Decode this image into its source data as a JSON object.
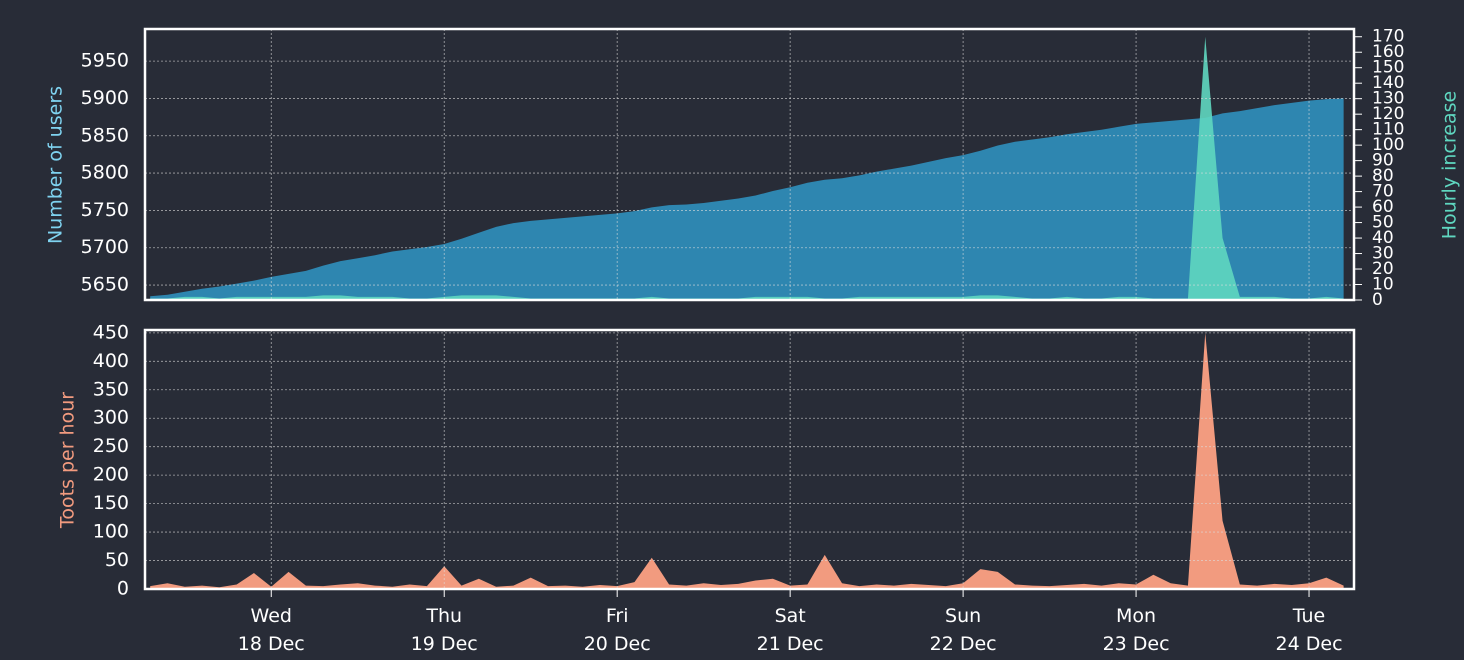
{
  "chart_data": [
    {
      "type": "area",
      "y_label": "Number of users",
      "y2_label": "Hourly increase",
      "x": [
        17.3,
        17.4,
        17.5,
        17.6,
        17.7,
        17.8,
        17.9,
        18.0,
        18.1,
        18.2,
        18.3,
        18.4,
        18.5,
        18.6,
        18.7,
        18.8,
        18.9,
        19.0,
        19.1,
        19.2,
        19.3,
        19.4,
        19.5,
        19.6,
        19.7,
        19.8,
        19.9,
        20.0,
        20.1,
        20.2,
        20.3,
        20.4,
        20.5,
        20.6,
        20.7,
        20.8,
        20.9,
        21.0,
        21.1,
        21.2,
        21.3,
        21.4,
        21.5,
        21.6,
        21.7,
        21.8,
        21.9,
        22.0,
        22.1,
        22.2,
        22.3,
        22.4,
        22.5,
        22.6,
        22.7,
        22.8,
        22.9,
        23.0,
        23.1,
        23.2,
        23.3,
        23.4,
        23.5,
        23.6,
        23.7,
        23.8,
        23.9,
        24.0,
        24.1,
        24.2
      ],
      "xlim": [
        17.27,
        24.26
      ],
      "ylim": [
        5630,
        5993
      ],
      "yticks": [
        5650,
        5700,
        5750,
        5800,
        5850,
        5900,
        5950
      ],
      "y2lim": [
        0,
        175
      ],
      "y2ticks": [
        0,
        10,
        20,
        30,
        40,
        50,
        60,
        70,
        80,
        90,
        100,
        110,
        120,
        130,
        140,
        150,
        160,
        170
      ],
      "grid": true,
      "series": [
        {
          "name": "Number of users",
          "color": "#2e86b0",
          "axis": "y",
          "values": [
            5635,
            5637,
            5641,
            5645,
            5648,
            5652,
            5656,
            5661,
            5665,
            5669,
            5676,
            5682,
            5686,
            5690,
            5695,
            5698,
            5701,
            5705,
            5712,
            5720,
            5728,
            5733,
            5736,
            5738,
            5740,
            5742,
            5744,
            5746,
            5749,
            5754,
            5757,
            5758,
            5760,
            5763,
            5766,
            5770,
            5776,
            5781,
            5787,
            5791,
            5793,
            5797,
            5802,
            5806,
            5810,
            5815,
            5820,
            5824,
            5830,
            5837,
            5842,
            5845,
            5848,
            5852,
            5855,
            5858,
            5862,
            5866,
            5868,
            5870,
            5872,
            5874,
            5880,
            5883,
            5887,
            5891,
            5894,
            5897,
            5899,
            5900
          ]
        },
        {
          "name": "Hourly increase",
          "color": "#5fd7c0",
          "axis": "y2",
          "values": [
            1,
            1,
            2,
            2,
            1,
            2,
            2,
            2,
            2,
            2,
            3,
            3,
            2,
            2,
            2,
            1,
            1,
            2,
            3,
            3,
            3,
            2,
            1,
            1,
            1,
            1,
            1,
            1,
            1,
            2,
            1,
            1,
            1,
            1,
            1,
            2,
            2,
            2,
            2,
            1,
            1,
            2,
            2,
            2,
            2,
            2,
            2,
            2,
            3,
            3,
            2,
            1,
            1,
            2,
            1,
            1,
            2,
            2,
            1,
            1,
            1,
            170,
            40,
            2,
            2,
            2,
            1,
            1,
            2,
            1
          ]
        }
      ]
    },
    {
      "type": "area",
      "y_label": "Toots per hour",
      "x": [
        17.3,
        17.4,
        17.5,
        17.6,
        17.7,
        17.8,
        17.9,
        18.0,
        18.1,
        18.2,
        18.3,
        18.4,
        18.5,
        18.6,
        18.7,
        18.8,
        18.9,
        19.0,
        19.1,
        19.2,
        19.3,
        19.4,
        19.5,
        19.6,
        19.7,
        19.8,
        19.9,
        20.0,
        20.1,
        20.2,
        20.3,
        20.4,
        20.5,
        20.6,
        20.7,
        20.8,
        20.9,
        21.0,
        21.1,
        21.2,
        21.3,
        21.4,
        21.5,
        21.6,
        21.7,
        21.8,
        21.9,
        22.0,
        22.1,
        22.2,
        22.3,
        22.4,
        22.5,
        22.6,
        22.7,
        22.8,
        22.9,
        23.0,
        23.1,
        23.2,
        23.3,
        23.4,
        23.5,
        23.6,
        23.7,
        23.8,
        23.9,
        24.0,
        24.1,
        24.2
      ],
      "xlim": [
        17.27,
        24.26
      ],
      "ylim": [
        0,
        455
      ],
      "yticks": [
        0,
        50,
        100,
        150,
        200,
        250,
        300,
        350,
        400,
        450
      ],
      "grid": true,
      "xticks": [
        {
          "value": 18,
          "label": "Wed\n18 Dec"
        },
        {
          "value": 19,
          "label": "Thu\n19 Dec"
        },
        {
          "value": 20,
          "label": "Fri\n20 Dec"
        },
        {
          "value": 21,
          "label": "Sat\n21 Dec"
        },
        {
          "value": 22,
          "label": "Sun\n22 Dec"
        },
        {
          "value": 23,
          "label": "Mon\n23 Dec"
        },
        {
          "value": 24,
          "label": "Tue\n24 Dec"
        }
      ],
      "series": [
        {
          "name": "Toots per hour",
          "color": "#f29b7f",
          "values": [
            5,
            10,
            4,
            6,
            3,
            8,
            28,
            4,
            30,
            6,
            5,
            8,
            10,
            6,
            4,
            8,
            5,
            40,
            6,
            18,
            4,
            6,
            20,
            5,
            6,
            4,
            7,
            5,
            12,
            55,
            8,
            6,
            10,
            7,
            9,
            15,
            18,
            6,
            8,
            60,
            10,
            5,
            8,
            6,
            9,
            7,
            5,
            10,
            35,
            30,
            8,
            6,
            5,
            7,
            9,
            6,
            10,
            8,
            25,
            10,
            6,
            450,
            120,
            8,
            6,
            9,
            7,
            10,
            20,
            6
          ]
        }
      ]
    }
  ]
}
